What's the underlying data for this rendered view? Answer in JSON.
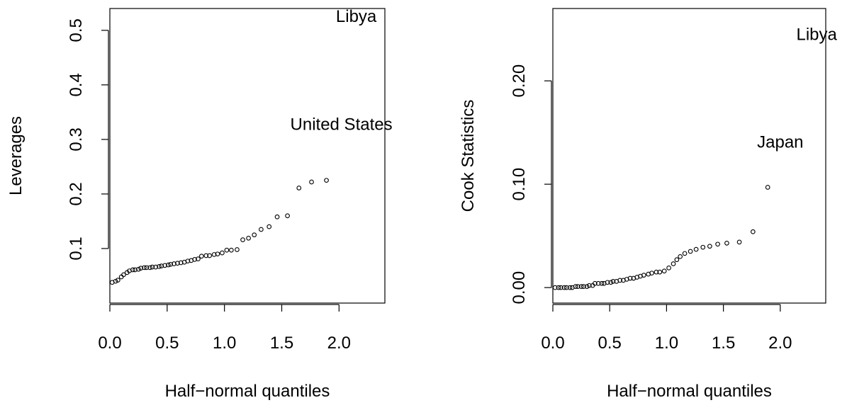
{
  "chart_data": [
    {
      "type": "scatter",
      "xlabel": "Half−normal quantiles",
      "ylabel": "Leverages",
      "xlim": [
        0.0,
        2.4
      ],
      "ylim": [
        0.0,
        0.54
      ],
      "xticks": [
        "0.0",
        "0.5",
        "1.0",
        "1.5",
        "2.0"
      ],
      "yticks": [
        "0.1",
        "0.2",
        "0.3",
        "0.4",
        "0.5"
      ],
      "points": {
        "x": [
          0.02,
          0.05,
          0.07,
          0.1,
          0.12,
          0.15,
          0.17,
          0.2,
          0.22,
          0.25,
          0.27,
          0.3,
          0.32,
          0.35,
          0.37,
          0.4,
          0.43,
          0.45,
          0.48,
          0.51,
          0.53,
          0.56,
          0.59,
          0.62,
          0.65,
          0.68,
          0.71,
          0.74,
          0.77,
          0.8,
          0.84,
          0.87,
          0.91,
          0.94,
          0.98,
          1.02,
          1.06,
          1.11,
          1.16,
          1.21,
          1.26,
          1.32,
          1.39,
          1.46,
          1.55,
          1.65,
          1.76,
          1.89
        ],
        "y": [
          0.038,
          0.04,
          0.042,
          0.048,
          0.052,
          0.056,
          0.059,
          0.061,
          0.061,
          0.062,
          0.064,
          0.065,
          0.065,
          0.065,
          0.066,
          0.066,
          0.067,
          0.068,
          0.069,
          0.07,
          0.071,
          0.072,
          0.073,
          0.074,
          0.075,
          0.077,
          0.078,
          0.08,
          0.081,
          0.086,
          0.087,
          0.087,
          0.089,
          0.09,
          0.092,
          0.097,
          0.097,
          0.098,
          0.116,
          0.119,
          0.125,
          0.135,
          0.14,
          0.158,
          0.16,
          0.211,
          0.222,
          0.225
        ]
      },
      "annotations": [
        {
          "text": "Libya",
          "x": 2.15,
          "y": 0.526
        },
        {
          "text": "United States",
          "x": 2.02,
          "y": 0.328
        }
      ]
    },
    {
      "type": "scatter",
      "xlabel": "Half−normal quantiles",
      "ylabel": "Cook Statistics",
      "xlim": [
        0.0,
        2.4
      ],
      "ylim": [
        -0.015,
        0.27
      ],
      "xticks": [
        "0.0",
        "0.5",
        "1.0",
        "1.5",
        "2.0"
      ],
      "yticks": [
        "0.00",
        "0.10",
        "0.20"
      ],
      "points": {
        "x": [
          0.02,
          0.05,
          0.07,
          0.1,
          0.12,
          0.15,
          0.17,
          0.2,
          0.22,
          0.25,
          0.27,
          0.3,
          0.32,
          0.35,
          0.37,
          0.4,
          0.43,
          0.45,
          0.48,
          0.51,
          0.53,
          0.56,
          0.59,
          0.62,
          0.65,
          0.68,
          0.71,
          0.74,
          0.77,
          0.8,
          0.84,
          0.87,
          0.91,
          0.94,
          0.98,
          1.02,
          1.06,
          1.09,
          1.12,
          1.16,
          1.21,
          1.26,
          1.32,
          1.38,
          1.45,
          1.53,
          1.64,
          1.76,
          1.89
        ],
        "y": [
          0.0,
          0.0,
          0.0,
          0.0,
          0.0,
          0.0,
          0.0,
          0.001,
          0.001,
          0.001,
          0.001,
          0.001,
          0.002,
          0.002,
          0.004,
          0.004,
          0.004,
          0.004,
          0.005,
          0.005,
          0.006,
          0.006,
          0.007,
          0.007,
          0.008,
          0.009,
          0.009,
          0.01,
          0.011,
          0.012,
          0.013,
          0.014,
          0.015,
          0.015,
          0.016,
          0.019,
          0.023,
          0.027,
          0.03,
          0.033,
          0.035,
          0.037,
          0.039,
          0.04,
          0.042,
          0.043,
          0.044,
          0.054,
          0.097
        ]
      },
      "annotations": [
        {
          "text": "Libya",
          "x": 2.32,
          "y": 0.245
        },
        {
          "text": "Japan",
          "x": 2.0,
          "y": 0.141
        }
      ]
    }
  ]
}
